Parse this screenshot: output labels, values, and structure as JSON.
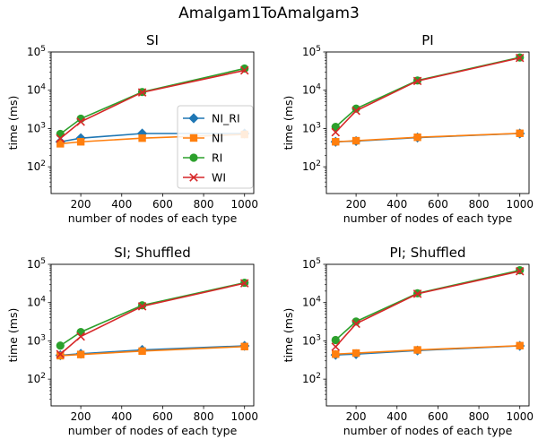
{
  "figure": {
    "suptitle": "Amalgam1ToAmalgam3"
  },
  "colors": {
    "NI_RI": "#1f77b4",
    "NI": "#ff7f0e",
    "RI": "#2ca02c",
    "WI": "#d62728"
  },
  "chart_data": [
    {
      "type": "line",
      "title": "SI",
      "xlabel": "number of nodes of each type",
      "ylabel": "time (ms)",
      "yscale": "log",
      "xlim": [
        55,
        1045
      ],
      "ylim": [
        20,
        100000
      ],
      "xticks": [
        200,
        400,
        600,
        800,
        1000
      ],
      "ytick_exponents": [
        2,
        3,
        4,
        5
      ],
      "x": [
        100,
        200,
        500,
        1000
      ],
      "legend": "center-right",
      "series": [
        {
          "name": "NI_RI",
          "marker": "diamond",
          "values": [
            450,
            560,
            740,
            740
          ]
        },
        {
          "name": "NI",
          "marker": "square",
          "values": [
            400,
            450,
            560,
            700
          ]
        },
        {
          "name": "RI",
          "marker": "circle",
          "values": [
            720,
            1800,
            9000,
            37000
          ]
        },
        {
          "name": "WI",
          "marker": "x",
          "values": [
            550,
            1500,
            8800,
            33000
          ]
        }
      ]
    },
    {
      "type": "line",
      "title": "PI",
      "xlabel": "number of nodes of each type",
      "ylabel": "time (ms)",
      "yscale": "log",
      "xlim": [
        55,
        1045
      ],
      "ylim": [
        20,
        100000
      ],
      "xticks": [
        200,
        400,
        600,
        800,
        1000
      ],
      "ytick_exponents": [
        2,
        3,
        4,
        5
      ],
      "x": [
        100,
        200,
        500,
        1000
      ],
      "series": [
        {
          "name": "NI_RI",
          "marker": "diamond",
          "values": [
            450,
            470,
            580,
            740
          ]
        },
        {
          "name": "NI",
          "marker": "square",
          "values": [
            450,
            480,
            590,
            750
          ]
        },
        {
          "name": "RI",
          "marker": "circle",
          "values": [
            1100,
            3300,
            18000,
            72000
          ]
        },
        {
          "name": "WI",
          "marker": "x",
          "values": [
            800,
            2900,
            17500,
            70000
          ]
        }
      ]
    },
    {
      "type": "line",
      "title": "SI; Shuffled",
      "xlabel": "number of nodes of each type",
      "ylabel": "time (ms)",
      "yscale": "log",
      "xlim": [
        55,
        1045
      ],
      "ylim": [
        20,
        100000
      ],
      "xticks": [
        200,
        400,
        600,
        800,
        1000
      ],
      "ytick_exponents": [
        2,
        3,
        4,
        5
      ],
      "x": [
        100,
        200,
        500,
        1000
      ],
      "series": [
        {
          "name": "NI_RI",
          "marker": "diamond",
          "values": [
            420,
            460,
            580,
            740
          ]
        },
        {
          "name": "NI",
          "marker": "square",
          "values": [
            410,
            440,
            540,
            710
          ]
        },
        {
          "name": "RI",
          "marker": "circle",
          "values": [
            750,
            1700,
            8500,
            33000
          ]
        },
        {
          "name": "WI",
          "marker": "x",
          "values": [
            450,
            1300,
            8000,
            32000
          ]
        }
      ]
    },
    {
      "type": "line",
      "title": "PI; Shuffled",
      "xlabel": "number of nodes of each type",
      "ylabel": "time (ms)",
      "yscale": "log",
      "xlim": [
        55,
        1045
      ],
      "ylim": [
        20,
        100000
      ],
      "xticks": [
        200,
        400,
        600,
        800,
        1000
      ],
      "ytick_exponents": [
        2,
        3,
        4,
        5
      ],
      "x": [
        100,
        200,
        500,
        1000
      ],
      "series": [
        {
          "name": "NI_RI",
          "marker": "diamond",
          "values": [
            430,
            450,
            560,
            740
          ]
        },
        {
          "name": "NI",
          "marker": "square",
          "values": [
            450,
            480,
            580,
            750
          ]
        },
        {
          "name": "RI",
          "marker": "circle",
          "values": [
            1050,
            3200,
            17500,
            70000
          ]
        },
        {
          "name": "WI",
          "marker": "x",
          "values": [
            700,
            2800,
            17000,
            66000
          ]
        }
      ]
    }
  ]
}
